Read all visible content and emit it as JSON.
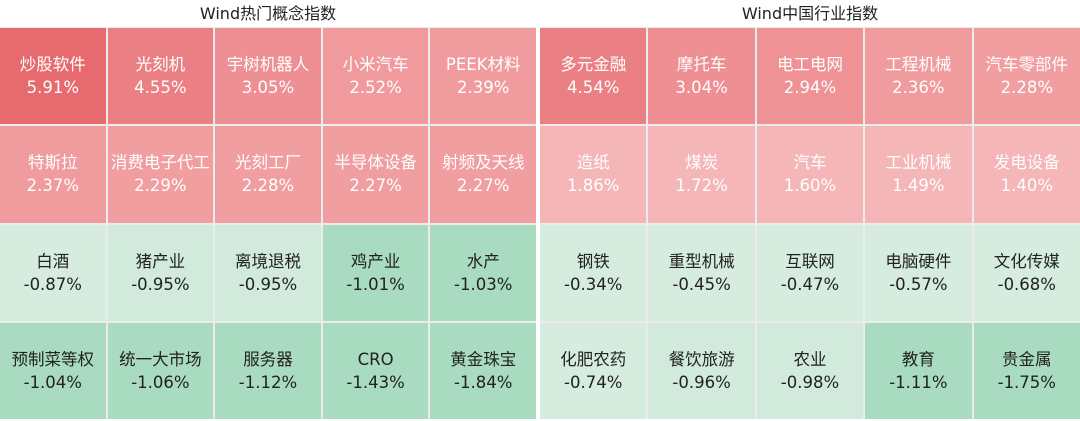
{
  "chart_data": [
    {
      "type": "heatmap",
      "title": "Wind热门概念指数",
      "rows": 4,
      "cols": 5,
      "cells": [
        {
          "name": "炒股软件",
          "value": 5.91,
          "label": "5.91%",
          "color": "#e66a6e"
        },
        {
          "name": "光刻机",
          "value": 4.55,
          "label": "4.55%",
          "color": "#eb8084"
        },
        {
          "name": "宇树机器人",
          "value": 3.05,
          "label": "3.05%",
          "color": "#ee9093"
        },
        {
          "name": "小米汽车",
          "value": 2.52,
          "label": "2.52%",
          "color": "#f09a9d"
        },
        {
          "name": "PEEK材料",
          "value": 2.39,
          "label": "2.39%",
          "color": "#f09c9f"
        },
        {
          "name": "特斯拉",
          "value": 2.37,
          "label": "2.37%",
          "color": "#f09c9f"
        },
        {
          "name": "消费电子代工",
          "value": 2.29,
          "label": "2.29%",
          "color": "#f19ea1"
        },
        {
          "name": "光刻工厂",
          "value": 2.28,
          "label": "2.28%",
          "color": "#f19ea1"
        },
        {
          "name": "半导体设备",
          "value": 2.27,
          "label": "2.27%",
          "color": "#f19ea1"
        },
        {
          "name": "射频及天线",
          "value": 2.27,
          "label": "2.27%",
          "color": "#f19ea1"
        },
        {
          "name": "白酒",
          "value": -0.87,
          "label": "-0.87%",
          "color": "#d5ecdf"
        },
        {
          "name": "猪产业",
          "value": -0.95,
          "label": "-0.95%",
          "color": "#d1eadc"
        },
        {
          "name": "离境退税",
          "value": -0.95,
          "label": "-0.95%",
          "color": "#d1eadc"
        },
        {
          "name": "鸡产业",
          "value": -1.01,
          "label": "-1.01%",
          "color": "#a9dbc0"
        },
        {
          "name": "水产",
          "value": -1.03,
          "label": "-1.03%",
          "color": "#a9dbc0"
        },
        {
          "name": "预制菜等权",
          "value": -1.04,
          "label": "-1.04%",
          "color": "#a9dbc0"
        },
        {
          "name": "统一大市场",
          "value": -1.06,
          "label": "-1.06%",
          "color": "#a9dbc0"
        },
        {
          "name": "服务器",
          "value": -1.12,
          "label": "-1.12%",
          "color": "#a9dbc0"
        },
        {
          "name": "CRO",
          "value": -1.43,
          "label": "-1.43%",
          "color": "#a9dbc0"
        },
        {
          "name": "黄金珠宝",
          "value": -1.84,
          "label": "-1.84%",
          "color": "#a9dbc0"
        }
      ]
    },
    {
      "type": "heatmap",
      "title": "Wind中国行业指数",
      "rows": 4,
      "cols": 5,
      "cells": [
        {
          "name": "多元金融",
          "value": 4.54,
          "label": "4.54%",
          "color": "#eb8084"
        },
        {
          "name": "摩托车",
          "value": 3.04,
          "label": "3.04%",
          "color": "#ee9093"
        },
        {
          "name": "电工电网",
          "value": 2.94,
          "label": "2.94%",
          "color": "#ee9295"
        },
        {
          "name": "工程机械",
          "value": 2.36,
          "label": "2.36%",
          "color": "#f09c9f"
        },
        {
          "name": "汽车零部件",
          "value": 2.28,
          "label": "2.28%",
          "color": "#f19ea1"
        },
        {
          "name": "造纸",
          "value": 1.86,
          "label": "1.86%",
          "color": "#f4b6b7"
        },
        {
          "name": "煤炭",
          "value": 1.72,
          "label": "1.72%",
          "color": "#f4b6b7"
        },
        {
          "name": "汽车",
          "value": 1.6,
          "label": "1.60%",
          "color": "#f4b6b7"
        },
        {
          "name": "工业机械",
          "value": 1.49,
          "label": "1.49%",
          "color": "#f4b6b7"
        },
        {
          "name": "发电设备",
          "value": 1.4,
          "label": "1.40%",
          "color": "#f4b6b7"
        },
        {
          "name": "钢铁",
          "value": -0.34,
          "label": "-0.34%",
          "color": "#d5ecdf"
        },
        {
          "name": "重型机械",
          "value": -0.45,
          "label": "-0.45%",
          "color": "#d5ecdf"
        },
        {
          "name": "互联网",
          "value": -0.47,
          "label": "-0.47%",
          "color": "#d5ecdf"
        },
        {
          "name": "电脑硬件",
          "value": -0.57,
          "label": "-0.57%",
          "color": "#d5ecdf"
        },
        {
          "name": "文化传媒",
          "value": -0.68,
          "label": "-0.68%",
          "color": "#d5ecdf"
        },
        {
          "name": "化肥农药",
          "value": -0.74,
          "label": "-0.74%",
          "color": "#d5ecdf"
        },
        {
          "name": "餐饮旅游",
          "value": -0.96,
          "label": "-0.96%",
          "color": "#d1eadc"
        },
        {
          "name": "农业",
          "value": -0.98,
          "label": "-0.98%",
          "color": "#d1eadc"
        },
        {
          "name": "教育",
          "value": -1.11,
          "label": "-1.11%",
          "color": "#a9dbc0"
        },
        {
          "name": "贵金属",
          "value": -1.75,
          "label": "-1.75%",
          "color": "#a9dbc0"
        }
      ]
    }
  ]
}
